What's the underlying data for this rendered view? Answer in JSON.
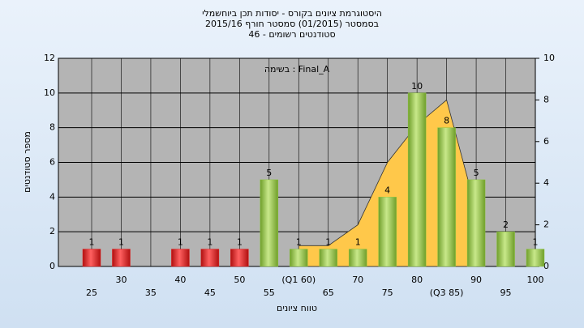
{
  "chart_data": {
    "type": "bar",
    "title": "היסטוגרמת ציונים בקורס - יסודות תכן ביוחשמלי",
    "subtitle": [
      "בסמסטר  (01/2015)  סמסטר חורף 2015/16",
      "סטודנטים רשומים - 46"
    ],
    "annotation": "בשימה : Final_A",
    "x_label": "טווח ציונים",
    "y_label": "מספר סטודנטים",
    "categories": [
      "25",
      "30",
      "35",
      "40",
      "45",
      "50",
      "55",
      "(Q1 60)",
      "65",
      "70",
      "75",
      "80",
      "(Q3 85)",
      "90",
      "95",
      "100"
    ],
    "series": [
      {
        "type": "bar",
        "values": [
          1,
          1,
          0,
          1,
          1,
          1,
          5,
          1,
          1,
          1,
          4,
          10,
          8,
          5,
          2,
          1
        ],
        "colors": [
          "#e02020",
          "#e02020",
          "#e02020",
          "#e02020",
          "#e02020",
          "#e02020",
          "#8cc63e",
          "#8cc63e",
          "#8cc63e",
          "#8cc63e",
          "#8cc63e",
          "#8cc63e",
          "#8cc63e",
          "#8cc63e",
          "#8cc63e",
          "#8cc63e"
        ]
      },
      {
        "type": "area",
        "axis": "y2",
        "color": "#ffc84a",
        "values": [
          null,
          null,
          null,
          null,
          null,
          null,
          null,
          1,
          1,
          2,
          5,
          6.8,
          8,
          2.7,
          null,
          null
        ]
      }
    ],
    "ylim": [
      0,
      12
    ],
    "yticks": [
      0,
      2,
      4,
      6,
      8,
      10,
      12
    ],
    "y2lim": [
      0,
      10
    ],
    "y2ticks": [
      0,
      2,
      4,
      6,
      8,
      10
    ],
    "grid": true
  }
}
